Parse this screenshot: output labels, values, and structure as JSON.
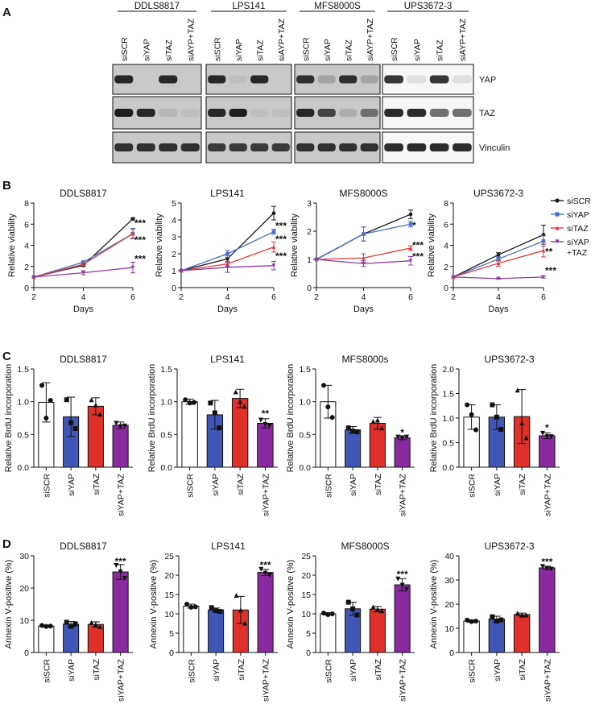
{
  "panel_labels": [
    "A",
    "B",
    "C",
    "D"
  ],
  "blot": {
    "cell_lines": [
      "DDLS8817",
      "LPS141",
      "MFS8000S",
      "UPS3672-3"
    ],
    "lanes": [
      [
        "siSCR",
        "siYAP",
        "siTAZ",
        "siAYP+TAZ"
      ],
      [
        "siSCR",
        "siYAP",
        "siTAZ",
        "siAYP+TAZ"
      ],
      [
        "siSCR",
        "siYAP",
        "siTAZ",
        "siAYP+TAZ"
      ],
      [
        "siSCR",
        "siYAP",
        "siTAZ",
        "siAYP+TAZ"
      ]
    ],
    "proteins": [
      "YAP",
      "TAZ",
      "Vinculin"
    ],
    "band_intensity": [
      [
        [
          0.9,
          0.0,
          0.9,
          0.0
        ],
        [
          0.95,
          0.9,
          0.1,
          0.05
        ],
        [
          0.85,
          0.85,
          0.85,
          0.85
        ]
      ],
      [
        [
          0.9,
          0.05,
          0.9,
          0.0
        ],
        [
          0.9,
          0.95,
          0.05,
          0.05
        ],
        [
          0.8,
          0.8,
          0.8,
          0.8
        ]
      ],
      [
        [
          0.85,
          0.2,
          0.85,
          0.2
        ],
        [
          0.9,
          0.75,
          0.15,
          0.5
        ],
        [
          0.85,
          0.85,
          0.85,
          0.85
        ]
      ],
      [
        [
          0.85,
          0.1,
          0.85,
          0.1
        ],
        [
          0.9,
          0.9,
          0.6,
          0.6
        ],
        [
          0.9,
          0.9,
          0.9,
          0.9
        ]
      ]
    ]
  },
  "legend": [
    {
      "label": "siSCR",
      "color": "#1a1a1a",
      "marker": "circle"
    },
    {
      "label": "siYAP",
      "color": "#4a6fc9",
      "marker": "square"
    },
    {
      "label": "siTAZ",
      "color": "#e03a3a",
      "marker": "triangle"
    },
    {
      "label": "siYAP\n+TAZ",
      "color": "#8e3aa8",
      "marker": "triangle-down"
    }
  ],
  "bar_colors": [
    "#ffffff",
    "#3f57b7",
    "#e0302a",
    "#8a2aa0"
  ],
  "chart_data": [
    {
      "type": "line",
      "panel": "B",
      "title": "DDLS8817",
      "xlabel": "Days",
      "ylabel": "Relative viability",
      "x": [
        2,
        4,
        6
      ],
      "xticks": [
        2,
        4,
        6
      ],
      "ylim": [
        0,
        8
      ],
      "yticks": [
        0,
        2,
        4,
        6,
        8
      ],
      "series": [
        {
          "name": "siSCR",
          "values": [
            1,
            2.1,
            6.5
          ],
          "errors": [
            0,
            0.1,
            0.1
          ]
        },
        {
          "name": "siYAP",
          "values": [
            1,
            2.4,
            5.1
          ],
          "errors": [
            0,
            0.1,
            0.5
          ]
        },
        {
          "name": "siTAZ",
          "values": [
            1,
            2.2,
            5.1
          ],
          "errors": [
            0,
            0.1,
            0.4
          ]
        },
        {
          "name": "siYAP+TAZ",
          "values": [
            1,
            1.4,
            1.9
          ],
          "errors": [
            0,
            0.2,
            0.5
          ]
        }
      ],
      "annotations": [
        {
          "text": "***",
          "x": 6,
          "y": 6.1
        },
        {
          "text": "***",
          "x": 6,
          "y": 4.5
        },
        {
          "text": "***",
          "x": 6,
          "y": 2.7
        }
      ]
    },
    {
      "type": "line",
      "panel": "B",
      "title": "LPS141",
      "xlabel": "Days",
      "ylabel": "Relative viability",
      "x": [
        2,
        4,
        6
      ],
      "xticks": [
        2,
        4,
        6
      ],
      "ylim": [
        0,
        5
      ],
      "yticks": [
        0,
        1,
        2,
        3,
        4,
        5
      ],
      "series": [
        {
          "name": "siSCR",
          "values": [
            1,
            1.7,
            4.4
          ],
          "errors": [
            0,
            0.2,
            0.4
          ]
        },
        {
          "name": "siYAP",
          "values": [
            1,
            2.0,
            3.3
          ],
          "errors": [
            0,
            0.2,
            0.15
          ]
        },
        {
          "name": "siTAZ",
          "values": [
            1,
            1.4,
            2.4
          ],
          "errors": [
            0,
            0.15,
            0.3
          ]
        },
        {
          "name": "siYAP+TAZ",
          "values": [
            1,
            1.2,
            1.3
          ],
          "errors": [
            0,
            0.3,
            0.25
          ]
        }
      ],
      "annotations": [
        {
          "text": "***",
          "x": 6,
          "y": 3.65
        },
        {
          "text": "***",
          "x": 6,
          "y": 2.85
        },
        {
          "text": "***",
          "x": 6,
          "y": 1.85
        }
      ]
    },
    {
      "type": "line",
      "panel": "B",
      "title": "MFS8000S",
      "xlabel": "Days",
      "ylabel": "Relative viability",
      "x": [
        2,
        4,
        6
      ],
      "xticks": [
        2,
        4,
        6
      ],
      "ylim": [
        0,
        3
      ],
      "yticks": [
        0,
        1,
        2,
        3
      ],
      "series": [
        {
          "name": "siSCR",
          "values": [
            1,
            1.9,
            2.6
          ],
          "errors": [
            0,
            0.25,
            0.15
          ]
        },
        {
          "name": "siYAP",
          "values": [
            1,
            1.9,
            2.25
          ],
          "errors": [
            0,
            0.25,
            0.1
          ]
        },
        {
          "name": "siTAZ",
          "values": [
            1,
            1.05,
            1.4
          ],
          "errors": [
            0,
            0.15,
            0.08
          ]
        },
        {
          "name": "siYAP+TAZ",
          "values": [
            1,
            0.85,
            0.95
          ],
          "errors": [
            0,
            0.1,
            0.15
          ]
        }
      ],
      "annotations": [
        {
          "text": "*",
          "x": 6,
          "y": 2.2
        },
        {
          "text": "***",
          "x": 6,
          "y": 1.5
        },
        {
          "text": "***",
          "x": 6,
          "y": 1.1
        }
      ]
    },
    {
      "type": "line",
      "panel": "B",
      "title": "UPS3672-3",
      "xlabel": "Days",
      "ylabel": "Relative viability",
      "x": [
        2,
        4,
        6
      ],
      "xticks": [
        2,
        4,
        6
      ],
      "ylim": [
        0,
        8
      ],
      "yticks": [
        0,
        2,
        4,
        6,
        8
      ],
      "series": [
        {
          "name": "siSCR",
          "values": [
            1,
            3.1,
            5.0
          ],
          "errors": [
            0,
            0.2,
            0.9
          ]
        },
        {
          "name": "siYAP",
          "values": [
            1,
            2.7,
            4.4
          ],
          "errors": [
            0,
            0.2,
            0.5
          ]
        },
        {
          "name": "siTAZ",
          "values": [
            1,
            2.3,
            3.5
          ],
          "errors": [
            0,
            0.3,
            0.6
          ]
        },
        {
          "name": "siYAP+TAZ",
          "values": [
            1,
            0.85,
            1.0
          ],
          "errors": [
            0,
            0.05,
            0.1
          ]
        }
      ],
      "annotations": [
        {
          "text": "**",
          "x": 6,
          "y": 3.4
        },
        {
          "text": "***",
          "x": 6,
          "y": 1.6
        }
      ]
    },
    {
      "type": "bar",
      "panel": "C",
      "title": "DDLS8817",
      "ylabel": "Relative BrdU incorporation",
      "categories": [
        "siSCR",
        "siYAP",
        "siTAZ",
        "siYAP+TAZ"
      ],
      "values": [
        0.99,
        0.77,
        0.93,
        0.64
      ],
      "errors": [
        0.3,
        0.3,
        0.13,
        0.05
      ],
      "points": [
        [
          1.25,
          0.75,
          1.02
        ],
        [
          1.03,
          0.68,
          0.59
        ],
        [
          1.03,
          0.95,
          0.81
        ],
        [
          0.67,
          0.62,
          0.63
        ]
      ],
      "ylim": [
        0,
        1.5
      ],
      "yticks": [
        0.0,
        0.5,
        1.0,
        1.5
      ],
      "annotations": []
    },
    {
      "type": "bar",
      "panel": "C",
      "title": "LPS141",
      "ylabel": "Relative BrdU incorporation",
      "categories": [
        "siSCR",
        "siYAP",
        "siTAZ",
        "siYAP+TAZ"
      ],
      "values": [
        1.0,
        0.8,
        1.05,
        0.67
      ],
      "errors": [
        0.04,
        0.22,
        0.14,
        0.07
      ],
      "points": [
        [
          1.03,
          0.98,
          0.99
        ],
        [
          0.98,
          0.83,
          0.6
        ],
        [
          1.15,
          1.0,
          0.93
        ],
        [
          0.72,
          0.65,
          0.63
        ]
      ],
      "ylim": [
        0,
        1.5
      ],
      "yticks": [
        0.0,
        0.5,
        1.0,
        1.5
      ],
      "annotations": [
        {
          "text": "**",
          "index": 3,
          "y": 0.82
        }
      ]
    },
    {
      "type": "bar",
      "panel": "C",
      "title": "MFS8000s",
      "ylabel": "Relative BrdU incorporation",
      "categories": [
        "siSCR",
        "siYAP",
        "siTAZ",
        "siYAP+TAZ"
      ],
      "values": [
        1.0,
        0.57,
        0.67,
        0.45
      ],
      "errors": [
        0.25,
        0.05,
        0.09,
        0.03
      ],
      "points": [
        [
          1.25,
          0.92,
          0.76
        ],
        [
          0.6,
          0.55,
          0.54
        ],
        [
          0.7,
          0.72,
          0.6
        ],
        [
          0.46,
          0.44,
          0.46
        ]
      ],
      "ylim": [
        0,
        1.5
      ],
      "yticks": [
        0.0,
        0.5,
        1.0,
        1.5
      ],
      "annotations": [
        {
          "text": "*",
          "index": 3,
          "y": 0.53
        }
      ]
    },
    {
      "type": "bar",
      "panel": "C",
      "title": "UPS3672-3",
      "ylabel": "Relative BrdU incorporation",
      "categories": [
        "siSCR",
        "siYAP",
        "siTAZ",
        "siYAP+TAZ"
      ],
      "values": [
        1.02,
        1.02,
        1.03,
        0.64
      ],
      "errors": [
        0.25,
        0.25,
        0.55,
        0.06
      ],
      "points": [
        [
          1.27,
          1.07,
          0.76
        ],
        [
          1.27,
          1.02,
          0.77
        ],
        [
          1.57,
          0.9,
          0.6
        ],
        [
          0.69,
          0.62,
          0.62
        ]
      ],
      "ylim": [
        0,
        2.0
      ],
      "yticks": [
        0.0,
        0.5,
        1.0,
        1.5,
        2.0
      ],
      "annotations": [
        {
          "text": "*",
          "index": 3,
          "y": 0.8
        }
      ]
    },
    {
      "type": "bar",
      "panel": "D",
      "title": "DDLS8817",
      "ylabel": "Annexin V-positive (%)",
      "categories": [
        "siSCR",
        "siYAP",
        "siTAZ",
        "siYAP+TAZ"
      ],
      "values": [
        8.2,
        8.8,
        8.7,
        25.0
      ],
      "errors": [
        0.3,
        0.8,
        0.8,
        2.3
      ],
      "points": [
        [
          8.4,
          8.1,
          8.2
        ],
        [
          9.4,
          8.1,
          8.9
        ],
        [
          9.3,
          8.7,
          8.0
        ],
        [
          27.0,
          25.0,
          23.0
        ]
      ],
      "ylim": [
        0,
        30
      ],
      "yticks": [
        0,
        10,
        20,
        30
      ],
      "annotations": [
        {
          "text": "***",
          "index": 3,
          "y": 28.2
        }
      ]
    },
    {
      "type": "bar",
      "panel": "D",
      "title": "LPS141",
      "ylabel": "Annexin V-positive (%)",
      "categories": [
        "siSCR",
        "siYAP",
        "siTAZ",
        "siYAP+TAZ"
      ],
      "values": [
        12.0,
        11.0,
        11.0,
        20.7
      ],
      "errors": [
        0.5,
        0.5,
        3.5,
        0.8
      ],
      "points": [
        [
          12.5,
          11.7,
          11.8
        ],
        [
          11.6,
          10.8,
          10.6
        ],
        [
          14.8,
          11.0,
          7.6
        ],
        [
          21.5,
          20.5,
          20.0
        ]
      ],
      "ylim": [
        0,
        25
      ],
      "yticks": [
        0,
        5,
        10,
        15,
        20,
        25
      ],
      "annotations": [
        {
          "text": "***",
          "index": 3,
          "y": 22.6
        }
      ]
    },
    {
      "type": "bar",
      "panel": "D",
      "title": "MFS8000S",
      "ylabel": "Annexin V-positive (%)",
      "categories": [
        "siSCR",
        "siYAP",
        "siTAZ",
        "siYAP+TAZ"
      ],
      "values": [
        10.0,
        11.3,
        11.2,
        17.5
      ],
      "errors": [
        0.3,
        1.7,
        0.7,
        1.6
      ],
      "points": [
        [
          10.2,
          9.8,
          10.0
        ],
        [
          13.0,
          11.3,
          9.7
        ],
        [
          11.8,
          11.2,
          10.8
        ],
        [
          19.0,
          17.4,
          16.3
        ]
      ],
      "ylim": [
        0,
        25
      ],
      "yticks": [
        0,
        5,
        10,
        15,
        20,
        25
      ],
      "annotations": [
        {
          "text": "***",
          "index": 3,
          "y": 20.2
        }
      ]
    },
    {
      "type": "bar",
      "panel": "D",
      "title": "UPS3672-3",
      "ylabel": "Annexin V-positive (%)",
      "categories": [
        "siSCR",
        "siYAP",
        "siTAZ",
        "siYAP+TAZ"
      ],
      "values": [
        13.0,
        13.8,
        15.7,
        35.0
      ],
      "errors": [
        0.5,
        1.2,
        0.6,
        0.7
      ],
      "points": [
        [
          13.4,
          12.8,
          13.0
        ],
        [
          14.8,
          13.0,
          13.5
        ],
        [
          16.3,
          15.4,
          15.5
        ],
        [
          35.6,
          34.8,
          34.5
        ]
      ],
      "ylim": [
        0,
        40
      ],
      "yticks": [
        0,
        10,
        20,
        30,
        40
      ],
      "annotations": [
        {
          "text": "***",
          "index": 3,
          "y": 37.5
        }
      ]
    }
  ]
}
